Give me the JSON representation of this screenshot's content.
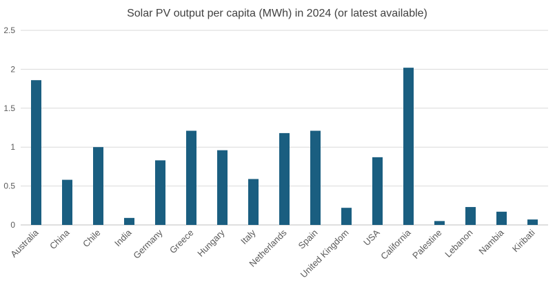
{
  "chart_data": {
    "type": "bar",
    "title": "Solar PV output per capita (MWh) in 2024 (or latest available)",
    "xlabel": "",
    "ylabel": "",
    "ylim": [
      0,
      2.5
    ],
    "yticks": [
      "0",
      "0.5",
      "1",
      "1.5",
      "2",
      "2.5"
    ],
    "grid": true,
    "bar_color": "#1a5e80",
    "categories": [
      "Australia",
      "China",
      "Chile",
      "India",
      "Germany",
      "Greece",
      "Hungary",
      "Italy",
      "Netherlands",
      "Spain",
      "United Kingdom",
      "USA",
      "California",
      "Palestine",
      "Lebanon",
      "Nambia",
      "Kiribati"
    ],
    "values": [
      1.86,
      0.58,
      1.0,
      0.09,
      0.83,
      1.21,
      0.96,
      0.59,
      1.18,
      1.21,
      0.22,
      0.87,
      2.02,
      0.05,
      0.23,
      0.17,
      0.07
    ]
  }
}
